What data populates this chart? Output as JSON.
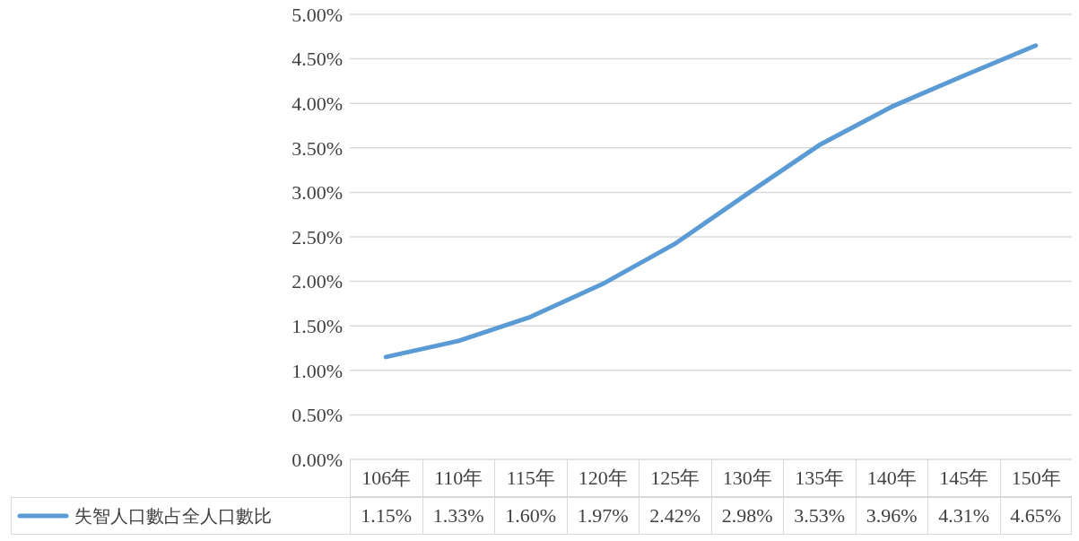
{
  "chart_data": {
    "type": "line",
    "categories": [
      "106年",
      "110年",
      "115年",
      "120年",
      "125年",
      "130年",
      "135年",
      "140年",
      "145年",
      "150年"
    ],
    "series": [
      {
        "name": "失智人口數占全人口數比",
        "color": "#5b9bd5",
        "values": [
          1.15,
          1.33,
          1.6,
          1.97,
          2.42,
          2.98,
          3.53,
          3.96,
          4.31,
          4.65
        ],
        "value_labels": [
          "1.15%",
          "1.33%",
          "1.60%",
          "1.97%",
          "2.42%",
          "2.98%",
          "3.53%",
          "3.96%",
          "4.31%",
          "4.65%"
        ]
      }
    ],
    "ylim": [
      0,
      5
    ],
    "yticks": [
      {
        "value": 0,
        "label": "0.00%"
      },
      {
        "value": 0.5,
        "label": "0.50%"
      },
      {
        "value": 1,
        "label": "1.00%"
      },
      {
        "value": 1.5,
        "label": "1.50%"
      },
      {
        "value": 2,
        "label": "2.00%"
      },
      {
        "value": 2.5,
        "label": "2.50%"
      },
      {
        "value": 3,
        "label": "3.00%"
      },
      {
        "value": 3.5,
        "label": "3.50%"
      },
      {
        "value": 4,
        "label": "4.00%"
      },
      {
        "value": 4.5,
        "label": "4.50%"
      },
      {
        "value": 5,
        "label": "5.00%"
      }
    ],
    "grid": "y",
    "legend": "bottom",
    "marker": "none",
    "line_style": "solid"
  }
}
